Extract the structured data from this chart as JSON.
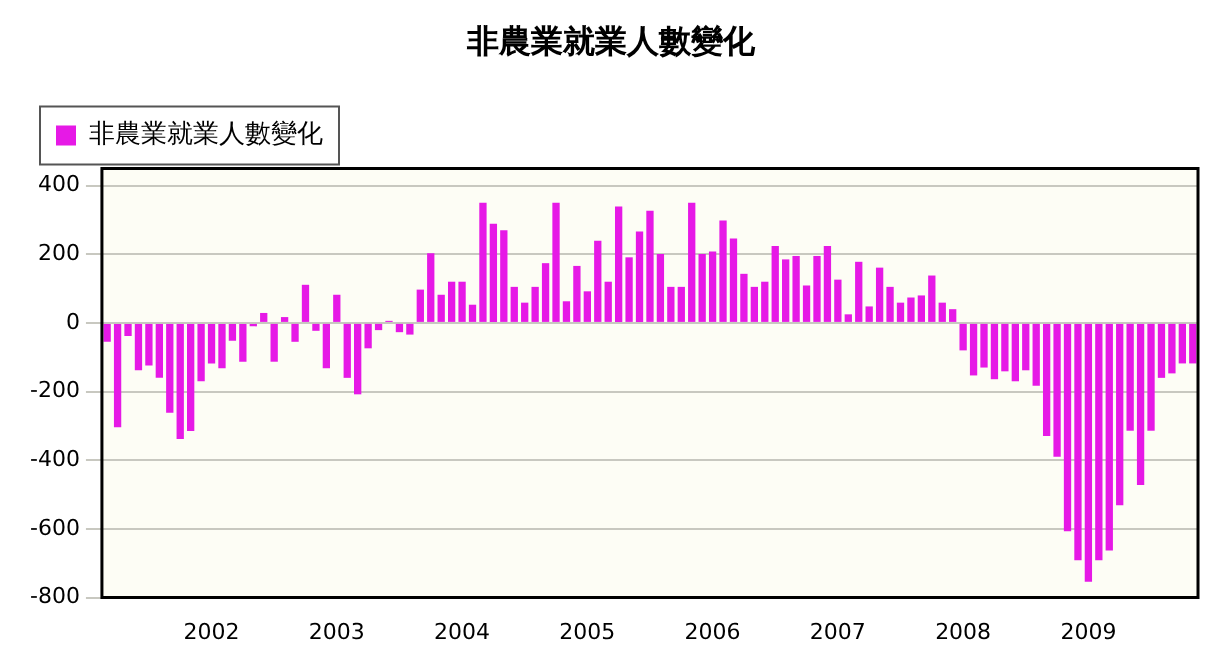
{
  "chart_data": {
    "type": "bar",
    "title": "非農業就業人數變化",
    "categories": [
      null,
      null,
      null,
      null,
      null,
      null,
      null,
      null,
      null,
      null,
      "2002",
      null,
      null,
      null,
      null,
      null,
      null,
      null,
      null,
      null,
      null,
      null,
      "2003",
      null,
      null,
      null,
      null,
      null,
      null,
      null,
      null,
      null,
      null,
      null,
      "2004",
      null,
      null,
      null,
      null,
      null,
      null,
      null,
      null,
      null,
      null,
      null,
      "2005",
      null,
      null,
      null,
      null,
      null,
      null,
      null,
      null,
      null,
      null,
      null,
      "2006",
      null,
      null,
      null,
      null,
      null,
      null,
      null,
      null,
      null,
      null,
      null,
      "2007",
      null,
      null,
      null,
      null,
      null,
      null,
      null,
      null,
      null,
      null,
      null,
      "2008",
      null,
      null,
      null,
      null,
      null,
      null,
      null,
      null,
      null,
      null,
      null,
      "2009",
      null,
      null,
      null,
      null,
      null,
      null,
      null,
      null,
      null,
      null
    ],
    "series": [
      {
        "name": "非農業就業人數變化",
        "color": "#e619e6",
        "values": [
          -55,
          -304,
          -38,
          -138,
          -124,
          -160,
          -262,
          -338,
          -315,
          -170,
          -118,
          -132,
          -52,
          -113,
          -10,
          29,
          -113,
          17,
          -55,
          111,
          -23,
          -132,
          82,
          -160,
          -208,
          -74,
          -21,
          6,
          -27,
          -34,
          97,
          203,
          82,
          120,
          120,
          53,
          350,
          289,
          270,
          105,
          59,
          105,
          174,
          350,
          63,
          166,
          92,
          239,
          120,
          339,
          191,
          266,
          327,
          201,
          105,
          105,
          350,
          201,
          208,
          298,
          246,
          143,
          105,
          120,
          224,
          185,
          195,
          109,
          195,
          224,
          126,
          25,
          178,
          48,
          161,
          105,
          59,
          74,
          80,
          138,
          59,
          40,
          -80,
          -153,
          -130,
          -164,
          -141,
          -170,
          -138,
          -183,
          -329,
          -390,
          -607,
          -691,
          -754,
          -691,
          -663,
          -531,
          -314,
          -472,
          -314,
          -160,
          -147,
          -118,
          -118
        ]
      }
    ],
    "ylim": [
      -800,
      450
    ],
    "yticks": [
      -800,
      -600,
      -400,
      -200,
      0,
      200,
      400
    ],
    "grid": "y",
    "legend": "top left"
  }
}
